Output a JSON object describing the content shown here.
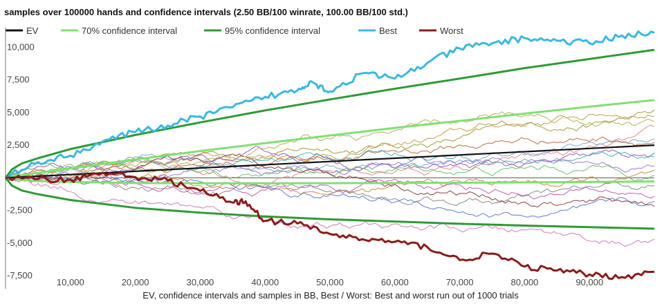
{
  "chart_data": {
    "type": "line",
    "title": "samples over 100000 hands and confidence intervals (2.50 BB/100 winrate, 100.00 BB/100 std.)",
    "xlabel": "EV, confidence intervals and samples in BB, Best / Worst: Best and worst run out of 1000 trials",
    "ylabel": "",
    "xlim": [
      0,
      100000
    ],
    "ylim": [
      -8500,
      11500
    ],
    "xticks": [
      10000,
      20000,
      30000,
      40000,
      50000,
      60000,
      70000,
      80000,
      90000
    ],
    "xtick_labels": [
      "10,000",
      "20,000",
      "30,000",
      "40,000",
      "50,000",
      "60,000",
      "70,000",
      "80,000",
      "90,000"
    ],
    "yticks": [
      10000,
      7500,
      5000,
      2500,
      -2500,
      -5000,
      -7500
    ],
    "ytick_labels": [
      "10,000",
      "7,500",
      "5,000",
      "2,500",
      "-2,500",
      "-5,000",
      "-7,500"
    ],
    "legend_position": "top",
    "grid": false,
    "series": [
      {
        "name": "EV",
        "color": "#111111",
        "x": [
          0,
          100000
        ],
        "values": [
          0,
          2500
        ]
      },
      {
        "name": "70% confidence interval",
        "color": "#80e070",
        "x": [
          0,
          1000,
          2500,
          5000,
          10000,
          20000,
          30000,
          40000,
          50000,
          60000,
          70000,
          80000,
          90000,
          100000
        ],
        "upper": [
          0,
          130,
          220,
          380,
          720,
          1400,
          2050,
          2650,
          3240,
          3820,
          4360,
          4920,
          5450,
          5950
        ],
        "lower": [
          0,
          -80,
          -160,
          -250,
          -320,
          -400,
          -420,
          -420,
          -410,
          -400,
          -380,
          -350,
          -320,
          -280
        ]
      },
      {
        "name": "95% confidence interval",
        "color": "#2e9a35",
        "x": [
          0,
          1000,
          2500,
          5000,
          10000,
          20000,
          30000,
          40000,
          50000,
          60000,
          70000,
          80000,
          90000,
          100000
        ],
        "upper": [
          0,
          650,
          1100,
          1500,
          2200,
          3280,
          4240,
          5160,
          6000,
          6820,
          7600,
          8400,
          9100,
          9800
        ],
        "lower": [
          0,
          -600,
          -970,
          -1260,
          -1700,
          -2300,
          -2670,
          -2960,
          -3180,
          -3350,
          -3520,
          -3660,
          -3780,
          -3900
        ]
      },
      {
        "name": "Best",
        "color": "#3ab8e0",
        "x": [
          0,
          5000,
          10000,
          15000,
          20000,
          25000,
          30000,
          35000,
          40000,
          45000,
          47000,
          50000,
          55000,
          60000,
          65000,
          70000,
          75000,
          80000,
          85000,
          90000,
          95000,
          100000
        ],
        "values": [
          0,
          1200,
          1700,
          2800,
          3500,
          4000,
          4700,
          5400,
          6200,
          6700,
          7400,
          6600,
          8000,
          7600,
          8800,
          9900,
          10300,
          10700,
          10500,
          10300,
          10900,
          11100
        ]
      },
      {
        "name": "Worst",
        "color": "#8b1a1a",
        "x": [
          0,
          5000,
          10000,
          15000,
          20000,
          25000,
          30000,
          35000,
          37000,
          40000,
          45000,
          50000,
          55000,
          60000,
          65000,
          70000,
          75000,
          80000,
          85000,
          90000,
          95000,
          100000
        ],
        "values": [
          0,
          -100,
          -150,
          400,
          50,
          -200,
          -1000,
          -1900,
          -1800,
          -3300,
          -3500,
          -4300,
          -4700,
          -4900,
          -5300,
          -6300,
          -5800,
          -6800,
          -7100,
          -7400,
          -7600,
          -7200
        ]
      }
    ],
    "samples": [
      {
        "color": "#9b9b3a",
        "end": 5200
      },
      {
        "color": "#c89a4a",
        "end": 4700
      },
      {
        "color": "#e08a8a",
        "end": 3900
      },
      {
        "color": "#7aa6e0",
        "end": 3000
      },
      {
        "color": "#c06a3a",
        "end": 2700
      },
      {
        "color": "#9a5ac0",
        "end": 1900
      },
      {
        "color": "#4ab0b0",
        "end": 1600
      },
      {
        "color": "#a07ad0",
        "end": 900
      },
      {
        "color": "#d08a3a",
        "end": 600
      },
      {
        "color": "#6ac06a",
        "end": 200
      },
      {
        "color": "#888888",
        "end": -600
      },
      {
        "color": "#c05ab0",
        "end": -1400
      },
      {
        "color": "#5a7ad0",
        "end": -1800
      },
      {
        "color": "#d07ab8",
        "end": -4700
      },
      {
        "color": "#8b3a3a",
        "end": -2200
      },
      {
        "color": "#b0b05a",
        "end": 4300
      }
    ]
  }
}
